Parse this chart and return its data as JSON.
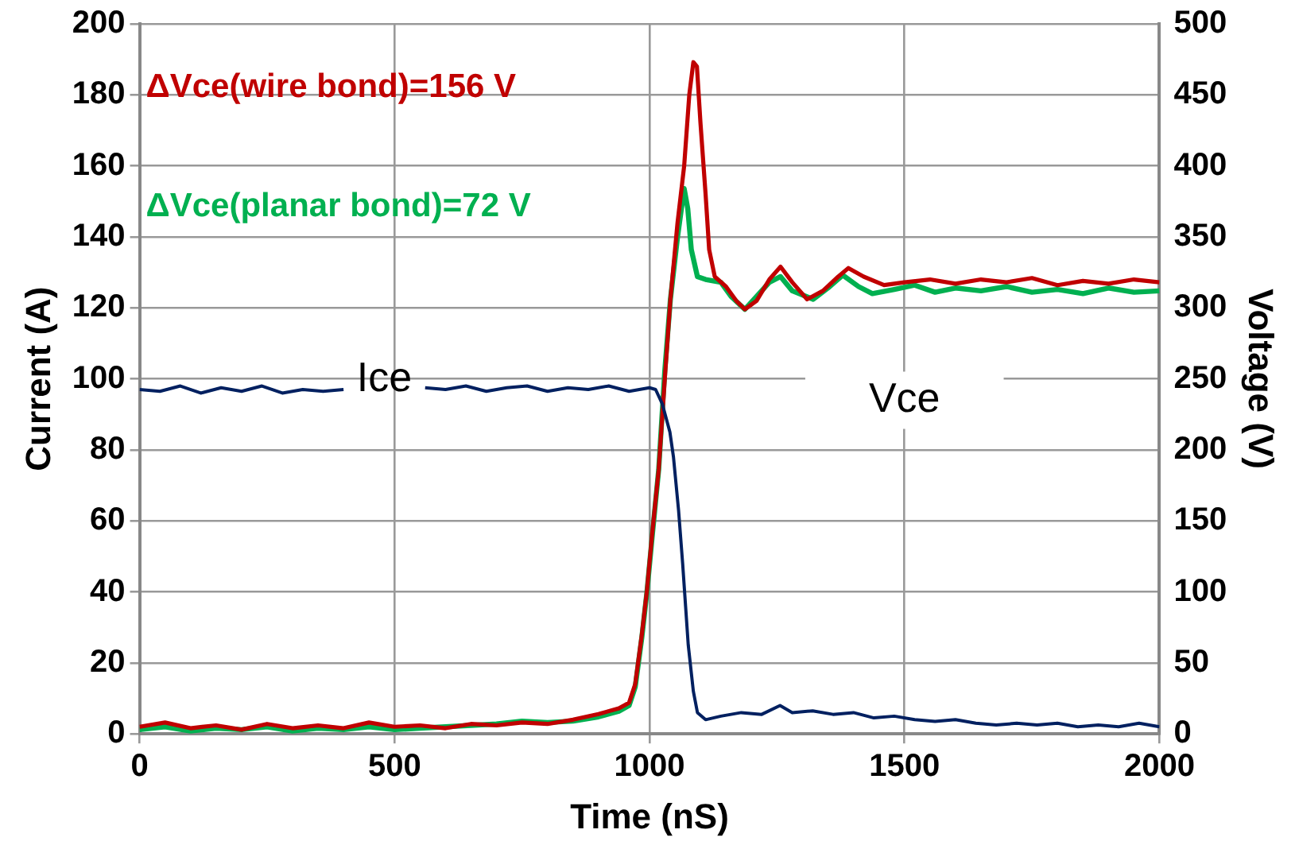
{
  "chart_data": {
    "type": "line",
    "xlabel": "Time (nS)",
    "ylabel": "Current (A)",
    "y2label": "Voltage (V)",
    "xlim": [
      0,
      2000
    ],
    "xticks": [
      0,
      500,
      1000,
      1500,
      2000
    ],
    "ylim": [
      0,
      200
    ],
    "yticks": [
      0,
      20,
      40,
      60,
      80,
      100,
      120,
      140,
      160,
      180,
      200
    ],
    "y2lim": [
      0,
      500
    ],
    "y2ticks": [
      0,
      50,
      100,
      150,
      200,
      250,
      300,
      350,
      400,
      450,
      500
    ],
    "grid": true,
    "legend": false,
    "marker": "none",
    "line_style": "solid",
    "annotations": [
      "Vce"
    ],
    "series": [
      {
        "name": "Ice",
        "color": "#002060",
        "x": [
          0,
          40,
          80,
          120,
          160,
          200,
          240,
          280,
          320,
          360,
          400,
          440,
          480,
          520,
          560,
          600,
          640,
          680,
          720,
          760,
          800,
          840,
          880,
          920,
          960,
          1000,
          1012,
          1025,
          1040,
          1047,
          1057,
          1065,
          1076,
          1086,
          1094,
          1110,
          1140,
          1180,
          1220,
          1256,
          1280,
          1320,
          1360,
          1400,
          1440,
          1480,
          1520,
          1560,
          1600,
          1640,
          1680,
          1720,
          1760,
          1800,
          1840,
          1880,
          1920,
          1960,
          2000
        ],
        "values": [
          97,
          96.5,
          98,
          96,
          97.5,
          96.5,
          98,
          96,
          97,
          96.5,
          97,
          null,
          null,
          null,
          97.5,
          97,
          98,
          96.5,
          97.5,
          98,
          96.5,
          97.5,
          97,
          98,
          96.5,
          97.5,
          97,
          93,
          85,
          78,
          63,
          48,
          25,
          12,
          6,
          4,
          5,
          6,
          5.5,
          8,
          6,
          6.5,
          5.5,
          6,
          4.5,
          5,
          4,
          3.5,
          4,
          3,
          2.5,
          3,
          2.5,
          3,
          2,
          2.5,
          2,
          3,
          2
        ]
      },
      {
        "name": "ΔVce(wire bond)=156 V",
        "color": "#c00000",
        "axis": "y2",
        "x": [
          0,
          50,
          100,
          150,
          200,
          250,
          300,
          350,
          400,
          450,
          500,
          550,
          600,
          650,
          700,
          750,
          800,
          850,
          900,
          940,
          960,
          972,
          985,
          995,
          1005,
          1018,
          1030,
          1041,
          1055,
          1068,
          1078,
          1086,
          1093,
          1100,
          1110,
          1117,
          1128,
          1150,
          1170,
          1187,
          1210,
          1235,
          1257,
          1280,
          1309,
          1340,
          1370,
          1390,
          1420,
          1460,
          1500,
          1550,
          1600,
          1650,
          1700,
          1750,
          1800,
          1850,
          1900,
          1950,
          2000
        ],
        "values": [
          5,
          8,
          4,
          6,
          3,
          7,
          4,
          6,
          4,
          8,
          5,
          6,
          4,
          7,
          6,
          8,
          7,
          10,
          14,
          18,
          22,
          35,
          70,
          101,
          140,
          186,
          250,
          306,
          360,
          400,
          450,
          473,
          470,
          430,
          380,
          341,
          322,
          315,
          305,
          299,
          305,
          320,
          329,
          318,
          306,
          312,
          322,
          328,
          322,
          316,
          318,
          320,
          317,
          320,
          318,
          321,
          316,
          319,
          317,
          320,
          318
        ]
      },
      {
        "name": "ΔVce(planar bond)=72 V",
        "color": "#00b050",
        "axis": "y2",
        "x": [
          0,
          50,
          100,
          150,
          200,
          250,
          300,
          350,
          400,
          450,
          500,
          550,
          600,
          650,
          700,
          750,
          800,
          850,
          900,
          940,
          960,
          972,
          985,
          995,
          1005,
          1018,
          1030,
          1041,
          1055,
          1068,
          1075,
          1082,
          1094,
          1110,
          1140,
          1160,
          1187,
          1210,
          1235,
          1257,
          1280,
          1321,
          1350,
          1379,
          1410,
          1437,
          1480,
          1520,
          1560,
          1600,
          1650,
          1700,
          1750,
          1800,
          1850,
          1900,
          1950,
          2000
        ],
        "values": [
          3,
          5,
          2,
          4,
          3,
          5,
          2,
          4,
          3,
          5,
          3,
          4,
          5,
          6,
          7,
          9,
          8,
          9,
          12,
          16,
          20,
          33,
          68,
          100,
          138,
          186,
          256,
          306,
          350,
          384,
          370,
          341,
          322,
          320,
          318,
          308,
          299,
          308,
          318,
          322,
          312,
          306,
          314,
          323,
          315,
          310,
          313,
          316,
          311,
          314,
          312,
          315,
          311,
          313,
          310,
          314,
          311,
          312
        ]
      }
    ]
  }
}
